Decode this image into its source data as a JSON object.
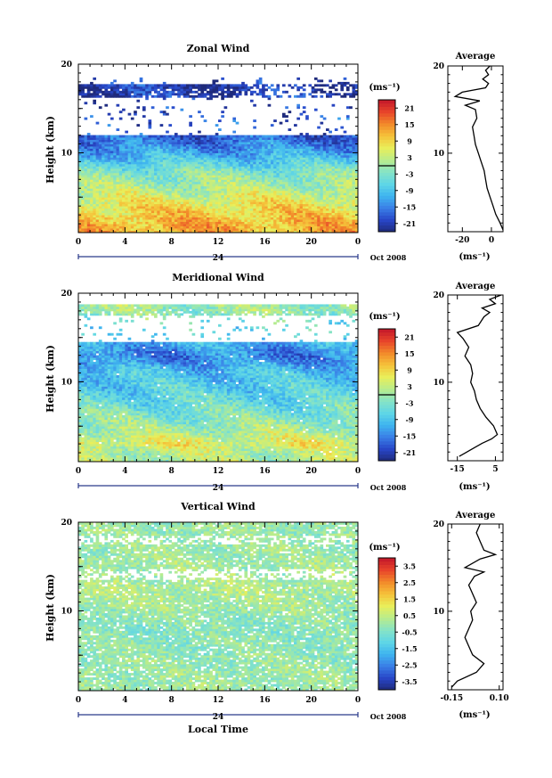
{
  "common": {
    "ylabel": "Height (km)",
    "unit_label": "(ms⁻¹)",
    "xlabel_bottom": "Local Time",
    "date_label": "Oct 2008",
    "day_label": "24",
    "time_ticks": [
      "0",
      "4",
      "8",
      "12",
      "16",
      "20",
      "0"
    ],
    "height_ticks": [
      "20",
      "10"
    ]
  },
  "chart_data": [
    {
      "type": "heatmap",
      "title": "Zonal Wind",
      "ylabel": "Height (km)",
      "x_range_hours": [
        0,
        24
      ],
      "y_range_km": [
        1,
        20
      ],
      "colorbar_ticks": [
        "21",
        "15",
        "9",
        "3",
        "-3",
        "-9",
        "-15",
        "-21"
      ],
      "colorbar_range": [
        -24,
        24
      ],
      "description_values": [
        {
          "height_km": 2,
          "wind": 12
        },
        {
          "height_km": 4,
          "wind": 8
        },
        {
          "height_km": 6,
          "wind": 2
        },
        {
          "height_km": 8,
          "wind": -3
        },
        {
          "height_km": 10,
          "wind": -12
        },
        {
          "height_km": 12,
          "wind": -18
        },
        {
          "height_km": 17,
          "wind": -21
        }
      ]
    },
    {
      "type": "line",
      "title": "Average",
      "xlabel": "(ms⁻¹)",
      "xticks": [
        "-20",
        "0"
      ],
      "xlim": [
        -30,
        8
      ],
      "ylim": [
        1,
        20
      ],
      "yticks": [
        "20",
        "10"
      ],
      "points": [
        [
          8,
          1.2
        ],
        [
          6,
          2
        ],
        [
          3,
          3
        ],
        [
          1,
          4
        ],
        [
          -1,
          5
        ],
        [
          -3,
          6
        ],
        [
          -4,
          7
        ],
        [
          -5,
          8
        ],
        [
          -7,
          9
        ],
        [
          -9,
          10
        ],
        [
          -11,
          11
        ],
        [
          -12,
          12
        ],
        [
          -13,
          13
        ],
        [
          -10,
          14
        ],
        [
          -11,
          15
        ],
        [
          -18,
          15.5
        ],
        [
          -8,
          16
        ],
        [
          -25,
          16.5
        ],
        [
          -20,
          17
        ],
        [
          -4,
          17.5
        ],
        [
          -2,
          18
        ],
        [
          -6,
          18.5
        ],
        [
          -2,
          19
        ],
        [
          -4,
          19.5
        ],
        [
          -1,
          20
        ]
      ]
    },
    {
      "type": "heatmap",
      "title": "Meridional Wind",
      "ylabel": "Height (km)",
      "x_range_hours": [
        0,
        24
      ],
      "y_range_km": [
        1,
        20
      ],
      "colorbar_ticks": [
        "21",
        "15",
        "9",
        "3",
        "-3",
        "-9",
        "-15",
        "-21"
      ],
      "colorbar_range": [
        -24,
        24
      ],
      "description_values": [
        {
          "height_km": 2,
          "wind": 2
        },
        {
          "height_km": 3,
          "wind": 6
        },
        {
          "height_km": 5,
          "wind": 0
        },
        {
          "height_km": 8,
          "wind": -6
        },
        {
          "height_km": 11,
          "wind": -9
        },
        {
          "height_km": 13,
          "wind": -15
        },
        {
          "height_km": 18,
          "wind": 0
        }
      ]
    },
    {
      "type": "line",
      "title": "Average",
      "xlabel": "(ms⁻¹)",
      "xticks": [
        "-15",
        "5"
      ],
      "xlim": [
        -20,
        9
      ],
      "ylim": [
        1,
        20
      ],
      "yticks": [
        "20",
        "10"
      ],
      "points": [
        [
          -14,
          1.5
        ],
        [
          -10,
          2
        ],
        [
          -6,
          2.5
        ],
        [
          -2,
          3
        ],
        [
          3,
          3.5
        ],
        [
          6,
          4
        ],
        [
          4,
          5
        ],
        [
          0,
          6
        ],
        [
          -3,
          7
        ],
        [
          -5,
          8
        ],
        [
          -6,
          9
        ],
        [
          -8,
          10
        ],
        [
          -7,
          11
        ],
        [
          -8,
          12
        ],
        [
          -11,
          13
        ],
        [
          -9,
          14
        ],
        [
          -12,
          15
        ],
        [
          -15,
          15.7
        ],
        [
          -4,
          16.5
        ],
        [
          -1,
          17.5
        ],
        [
          2,
          18
        ],
        [
          -2,
          18.5
        ],
        [
          5,
          19
        ],
        [
          2,
          19.5
        ],
        [
          8,
          20
        ]
      ]
    },
    {
      "type": "heatmap",
      "title": "Vertical Wind",
      "ylabel": "Height (km)",
      "xlabel": "Local Time",
      "x_range_hours": [
        0,
        24
      ],
      "y_range_km": [
        1,
        20
      ],
      "colorbar_ticks": [
        "3.5",
        "2.5",
        "1.5",
        "0.5",
        "-0.5",
        "-1.5",
        "-2.5",
        "-3.5"
      ],
      "colorbar_range": [
        -4,
        4
      ],
      "description_values": [
        {
          "height_km": 3,
          "wind": 0
        },
        {
          "height_km": 8,
          "wind": -0.3
        },
        {
          "height_km": 12,
          "wind": 0.3
        },
        {
          "height_km": 17,
          "wind": 0
        }
      ]
    },
    {
      "type": "line",
      "title": "Average",
      "xlabel": "(ms⁻¹)",
      "xticks": [
        "-0.15",
        "0.10"
      ],
      "xlim": [
        -0.17,
        0.12
      ],
      "ylim": [
        1,
        20
      ],
      "yticks": [
        "20",
        "10"
      ],
      "points": [
        [
          -0.15,
          1.3
        ],
        [
          -0.12,
          2
        ],
        [
          -0.02,
          3
        ],
        [
          0.02,
          4
        ],
        [
          -0.04,
          5
        ],
        [
          -0.06,
          6
        ],
        [
          -0.08,
          7
        ],
        [
          -0.06,
          8
        ],
        [
          -0.04,
          9
        ],
        [
          -0.05,
          10
        ],
        [
          -0.02,
          11
        ],
        [
          -0.04,
          12
        ],
        [
          -0.06,
          13
        ],
        [
          -0.03,
          14
        ],
        [
          0.02,
          14.5
        ],
        [
          -0.08,
          15
        ],
        [
          0.0,
          16
        ],
        [
          0.08,
          16.5
        ],
        [
          0.02,
          17
        ],
        [
          0.0,
          18
        ],
        [
          -0.02,
          19
        ],
        [
          0.0,
          20
        ]
      ]
    }
  ]
}
